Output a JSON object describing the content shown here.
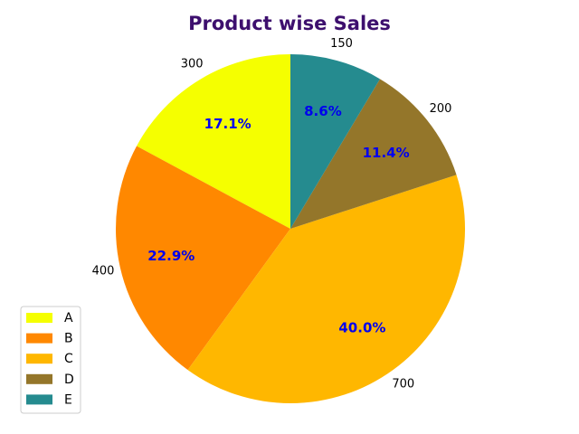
{
  "chart_data": {
    "type": "pie",
    "title": "Product wise Sales",
    "categories": [
      "A",
      "B",
      "C",
      "D",
      "E"
    ],
    "values": [
      300,
      400,
      700,
      200,
      150
    ],
    "value_labels": [
      "300",
      "400",
      "700",
      "200",
      "150"
    ],
    "percent_labels": [
      "17.1%",
      "22.9%",
      "40.0%",
      "11.4%",
      "8.6%"
    ],
    "colors": [
      "#f5ff00",
      "#ff8800",
      "#ffb700",
      "#94762a",
      "#258b8f"
    ],
    "title_color": "#3d0f6e",
    "percent_label_color": "#0000ee",
    "start_angle_deg": 90,
    "direction": "counterclockwise",
    "legend": {
      "placement": "lower-left",
      "entries": [
        "A",
        "B",
        "C",
        "D",
        "E"
      ]
    }
  }
}
